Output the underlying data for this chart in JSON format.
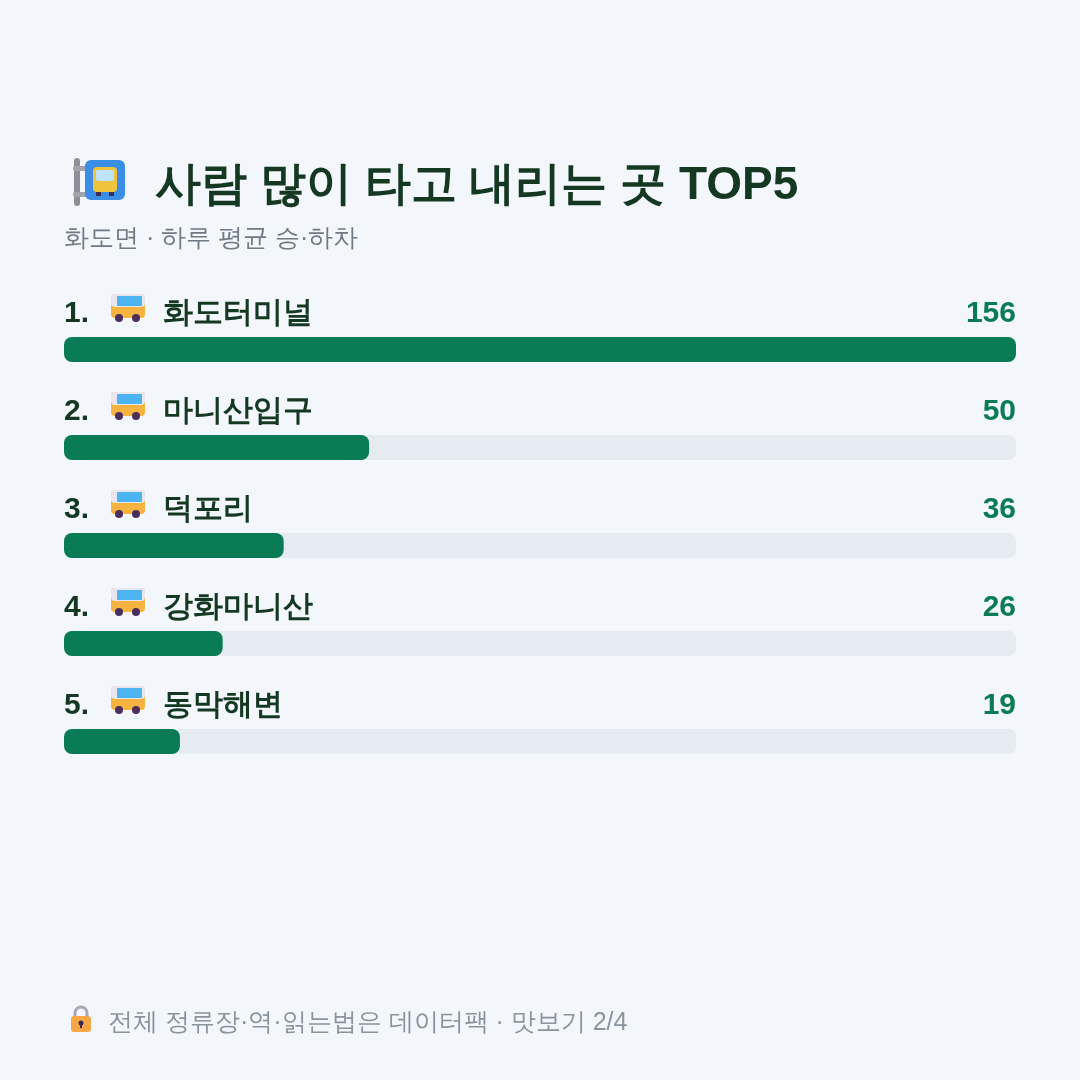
{
  "chart_data": {
    "type": "bar",
    "orientation": "horizontal",
    "title": "사람 많이 타고 내리는 곳 TOP5",
    "subtitle": "화도면 · 하루 평균 승·하차",
    "categories": [
      "1. 화도터미널",
      "2. 마니산입구",
      "3. 덕포리",
      "4. 강화마니산",
      "5. 동막해변"
    ],
    "values": [
      156,
      50,
      36,
      26,
      19
    ],
    "color": "#0a7c55",
    "data_labels": true,
    "annotations": [
      "전체 정류장·역·읽는법은 데이터팩 · 맛보기 2/4"
    ]
  }
}
